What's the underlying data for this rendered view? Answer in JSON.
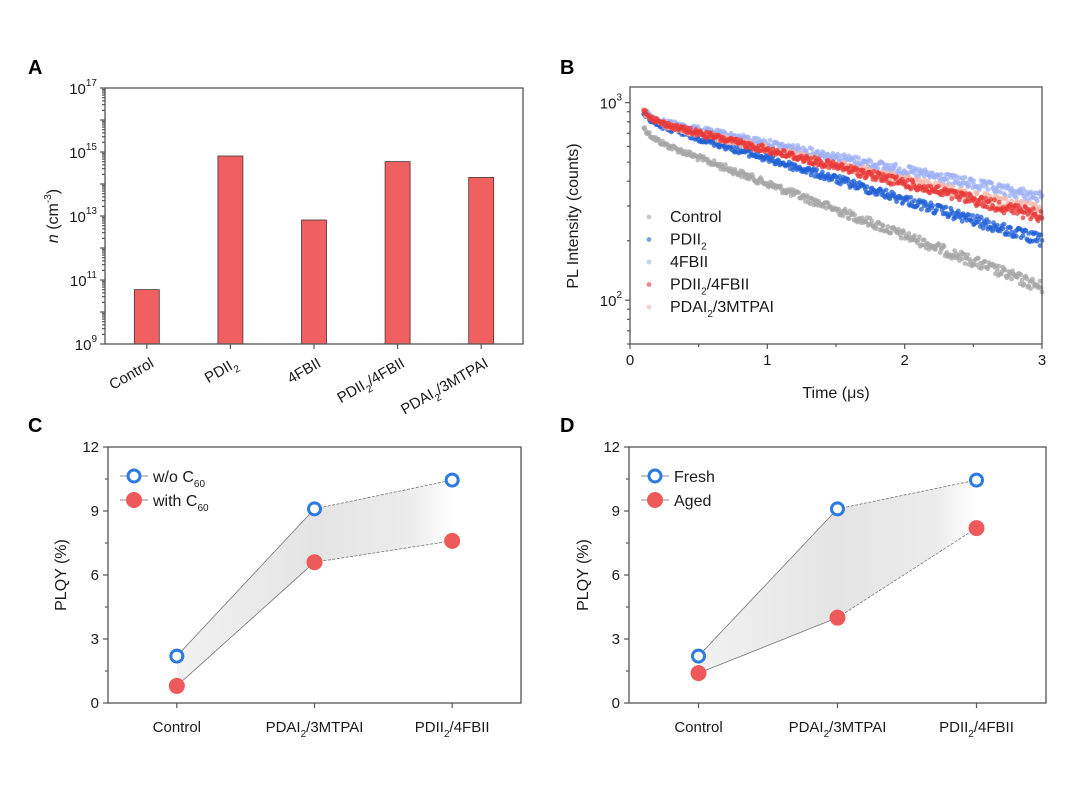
{
  "figure": {
    "panels": [
      "A",
      "B",
      "C",
      "D"
    ]
  },
  "colors": {
    "bar": "#f06060",
    "control": "#a6a6a6",
    "pdii2": "#1f5fd6",
    "fbii": "#9fb0f5",
    "pdii2_4fbii": "#e83838",
    "pdai2_3mtpai": "#f5b5a8",
    "open_marker": "#2d7be0",
    "filled_marker": "#ee5a5a",
    "band": "#e8e8e8"
  },
  "chart_data": [
    {
      "panel": "A",
      "type": "bar",
      "title": "",
      "xlabel": "",
      "ylabel": "n (cm-3)",
      "ylabel_parts": {
        "italic": "n",
        "rest": " (cm",
        "sup": "-3",
        "end": ")"
      },
      "yscale": "log",
      "ylim": [
        1000000000.0,
        1e+17
      ],
      "yticks": [
        {
          "base": "10",
          "exp": "9",
          "value": 9
        },
        {
          "base": "10",
          "exp": "11",
          "value": 11
        },
        {
          "base": "10",
          "exp": "13",
          "value": 13
        },
        {
          "base": "10",
          "exp": "15",
          "value": 15
        },
        {
          "base": "10",
          "exp": "17",
          "value": 17
        }
      ],
      "categories": [
        {
          "main": "Control",
          "sub": "",
          "tail": ""
        },
        {
          "main": "PDII",
          "sub": "2",
          "tail": ""
        },
        {
          "main": "4FBII",
          "sub": "",
          "tail": ""
        },
        {
          "main": "PDII",
          "sub": "2",
          "tail": "/4FBII"
        },
        {
          "main": "PDAI",
          "sub": "2",
          "tail": "/3MTPAI"
        }
      ],
      "values": [
        50000000000.0,
        750000000000000.0,
        7500000000000.0,
        500000000000000.0,
        160000000000000.0
      ]
    },
    {
      "panel": "B",
      "type": "scatter",
      "title": "",
      "xlabel": "Time (μs)",
      "ylabel": "PL Intensity (counts)",
      "xlim": [
        0,
        3
      ],
      "xticks": [
        "0",
        "1",
        "2",
        "3"
      ],
      "yscale": "log",
      "ylim": [
        60,
        1200
      ],
      "yticks": [
        {
          "base": "10",
          "exp": "2",
          "value": 100
        },
        {
          "base": "10",
          "exp": "3",
          "value": 1000
        }
      ],
      "legend_position": "bottom-left",
      "series": [
        {
          "name": "Control",
          "label_main": "Control",
          "label_sub": "",
          "label_tail": "",
          "color_key": "control",
          "t_start": 0.1,
          "i_start": 670,
          "t_end": 3.0,
          "i_end": 116
        },
        {
          "name": "PDII2",
          "label_main": "PDII",
          "label_sub": "2",
          "label_tail": "",
          "color_key": "pdii2",
          "t_start": 0.1,
          "i_start": 800,
          "t_end": 3.0,
          "i_end": 200
        },
        {
          "name": "4FBII",
          "label_main": "4FBII",
          "label_sub": "",
          "label_tail": "",
          "color_key": "fbii",
          "t_start": 0.1,
          "i_start": 830,
          "t_end": 3.0,
          "i_end": 330
        },
        {
          "name": "PDII2/4FBII",
          "label_main": "PDII",
          "label_sub": "2",
          "label_tail": "/4FBII",
          "color_key": "pdii2_4fbii",
          "t_start": 0.1,
          "i_start": 820,
          "t_end": 3.0,
          "i_end": 265
        },
        {
          "name": "PDAI2/3MTPAI",
          "label_main": "PDAI",
          "label_sub": "2",
          "label_tail": "/3MTPAI",
          "color_key": "pdai2_3mtpai",
          "t_start": 0.1,
          "i_start": 810,
          "t_end": 3.0,
          "i_end": 280
        }
      ]
    },
    {
      "panel": "C",
      "type": "line",
      "title": "",
      "xlabel": "",
      "ylabel": "PLQY (%)",
      "ylim": [
        0,
        12
      ],
      "yticks": [
        "0",
        "3",
        "6",
        "9",
        "12"
      ],
      "categories": [
        {
          "main": "Control",
          "sub": "",
          "tail": ""
        },
        {
          "main": "PDAI",
          "sub": "2",
          "tail": "/3MTPAI"
        },
        {
          "main": "PDII",
          "sub": "2",
          "tail": "/4FBII"
        }
      ],
      "legend_position": "top-left",
      "series": [
        {
          "name": "w/o C60",
          "label_main": "w/o C",
          "label_sub": "60",
          "marker": "open",
          "values": [
            2.2,
            9.1,
            10.45
          ]
        },
        {
          "name": "with C60",
          "label_main": "with C",
          "label_sub": "60",
          "marker": "filled",
          "values": [
            0.8,
            6.6,
            7.6
          ]
        }
      ]
    },
    {
      "panel": "D",
      "type": "line",
      "title": "",
      "xlabel": "",
      "ylabel": "PLQY (%)",
      "ylim": [
        0,
        12
      ],
      "yticks": [
        "0",
        "3",
        "6",
        "9",
        "12"
      ],
      "categories": [
        {
          "main": "Control",
          "sub": "",
          "tail": ""
        },
        {
          "main": "PDAI",
          "sub": "2",
          "tail": "/3MTPAI"
        },
        {
          "main": "PDII",
          "sub": "2",
          "tail": "/4FBII"
        }
      ],
      "legend_position": "top-left",
      "series": [
        {
          "name": "Fresh",
          "label_main": "Fresh",
          "label_sub": "",
          "marker": "open",
          "values": [
            2.2,
            9.1,
            10.45
          ]
        },
        {
          "name": "Aged",
          "label_main": "Aged",
          "label_sub": "",
          "marker": "filled",
          "values": [
            1.4,
            4.0,
            8.2
          ]
        }
      ]
    }
  ]
}
